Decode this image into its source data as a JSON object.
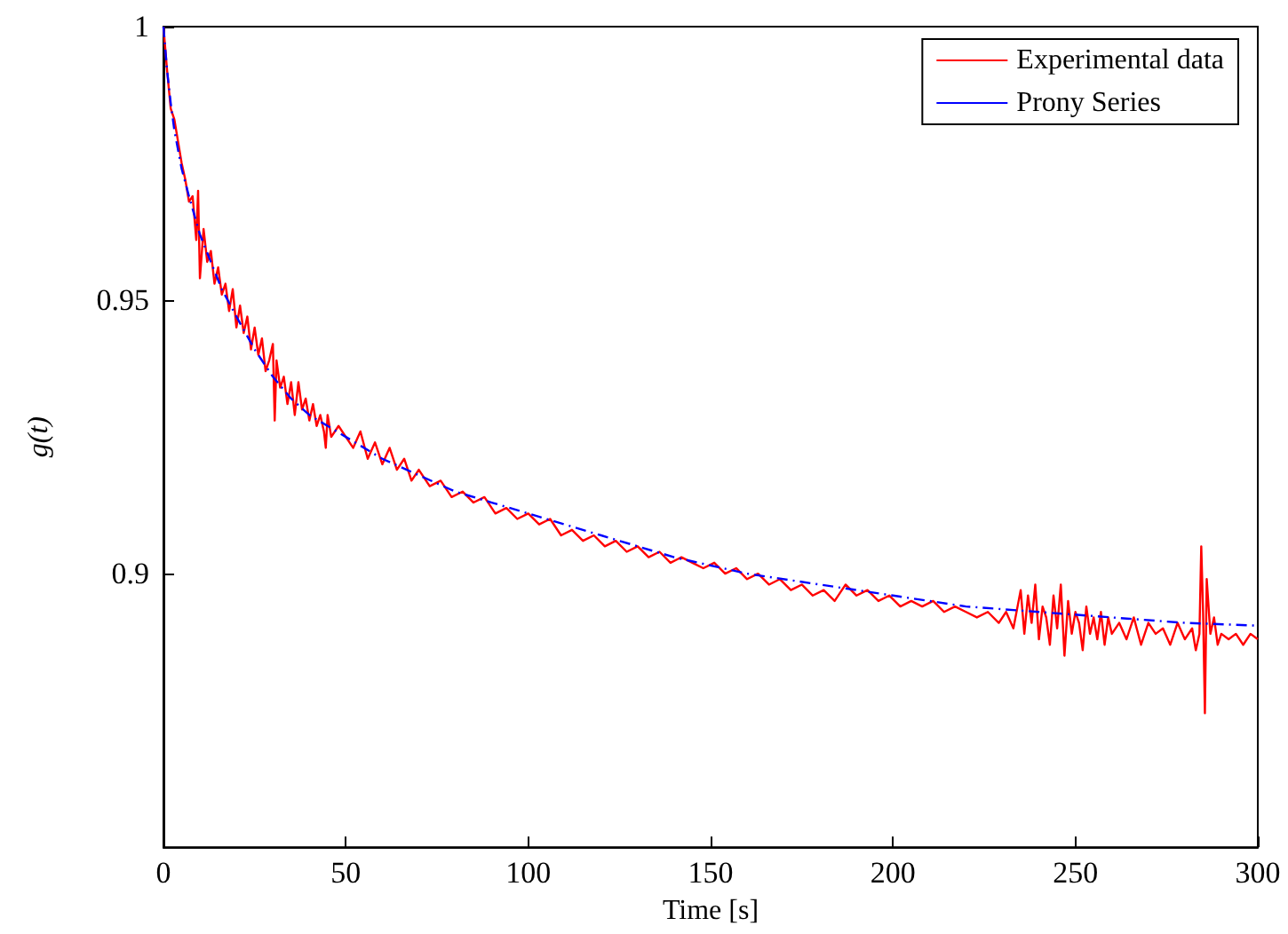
{
  "chart_data": {
    "type": "line",
    "xlabel": "Time [s]",
    "ylabel": "g(t)",
    "xlim": [
      0,
      300
    ],
    "xticks": [
      0,
      50,
      100,
      150,
      200,
      250,
      300
    ],
    "ylim": [
      0.85,
      1
    ],
    "yticks": [
      0.9,
      0.95,
      1
    ],
    "grid": false,
    "legend": "top right",
    "marker": "none",
    "series": [
      {
        "name": "Experimental data",
        "color": "#ff0000",
        "line_style": "solid",
        "x": [
          0,
          1,
          2,
          3,
          4,
          5,
          6,
          7,
          8,
          9,
          9.5,
          10,
          11,
          12,
          13,
          14,
          15,
          16,
          17,
          18,
          19,
          20,
          21,
          22,
          23,
          24,
          25,
          26,
          27,
          28,
          29,
          30,
          30.5,
          31,
          32,
          33,
          34,
          35,
          36,
          37,
          38,
          39,
          40,
          41,
          42,
          43,
          44,
          44.5,
          45,
          46,
          48,
          50,
          52,
          54,
          56,
          58,
          60,
          62,
          64,
          66,
          68,
          70,
          73,
          76,
          79,
          82,
          85,
          88,
          91,
          94,
          97,
          100,
          103,
          106,
          109,
          112,
          115,
          118,
          121,
          124,
          127,
          130,
          133,
          136,
          139,
          142,
          145,
          148,
          151,
          154,
          157,
          160,
          163,
          166,
          169,
          172,
          175,
          178,
          181,
          184,
          187,
          190,
          193,
          196,
          199,
          202,
          205,
          208,
          211,
          214,
          217,
          220,
          223,
          226,
          229,
          231,
          233,
          235,
          236,
          237,
          238,
          239,
          240,
          241,
          242,
          243,
          244,
          245,
          246,
          247,
          248,
          249,
          250,
          251,
          252,
          253,
          254,
          255,
          256,
          257,
          258,
          259,
          260,
          262,
          264,
          266,
          268,
          270,
          272,
          274,
          276,
          278,
          280,
          282,
          283,
          284,
          284.5,
          285,
          285.5,
          286,
          287,
          288,
          289,
          290,
          292,
          294,
          296,
          298,
          300
        ],
        "values": [
          1.0,
          0.992,
          0.985,
          0.983,
          0.979,
          0.975,
          0.972,
          0.968,
          0.969,
          0.961,
          0.97,
          0.954,
          0.963,
          0.957,
          0.959,
          0.953,
          0.956,
          0.951,
          0.953,
          0.948,
          0.952,
          0.945,
          0.949,
          0.944,
          0.947,
          0.941,
          0.945,
          0.94,
          0.943,
          0.937,
          0.939,
          0.942,
          0.928,
          0.939,
          0.934,
          0.936,
          0.931,
          0.935,
          0.929,
          0.935,
          0.93,
          0.932,
          0.928,
          0.931,
          0.927,
          0.929,
          0.926,
          0.923,
          0.929,
          0.925,
          0.927,
          0.925,
          0.923,
          0.926,
          0.921,
          0.924,
          0.92,
          0.923,
          0.919,
          0.921,
          0.917,
          0.919,
          0.916,
          0.917,
          0.914,
          0.915,
          0.913,
          0.914,
          0.911,
          0.912,
          0.91,
          0.911,
          0.909,
          0.91,
          0.907,
          0.908,
          0.906,
          0.907,
          0.905,
          0.906,
          0.904,
          0.905,
          0.903,
          0.904,
          0.902,
          0.903,
          0.902,
          0.901,
          0.902,
          0.9,
          0.901,
          0.899,
          0.9,
          0.898,
          0.899,
          0.897,
          0.898,
          0.896,
          0.897,
          0.895,
          0.898,
          0.896,
          0.897,
          0.895,
          0.896,
          0.894,
          0.895,
          0.894,
          0.895,
          0.893,
          0.894,
          0.893,
          0.892,
          0.893,
          0.891,
          0.893,
          0.89,
          0.897,
          0.889,
          0.896,
          0.891,
          0.898,
          0.888,
          0.894,
          0.892,
          0.887,
          0.896,
          0.89,
          0.898,
          0.885,
          0.895,
          0.889,
          0.893,
          0.891,
          0.886,
          0.894,
          0.889,
          0.892,
          0.888,
          0.893,
          0.887,
          0.892,
          0.889,
          0.891,
          0.888,
          0.892,
          0.887,
          0.891,
          0.889,
          0.89,
          0.887,
          0.891,
          0.888,
          0.89,
          0.886,
          0.889,
          0.905,
          0.893,
          0.8745,
          0.899,
          0.889,
          0.892,
          0.887,
          0.889,
          0.888,
          0.889,
          0.887,
          0.889,
          0.888
        ]
      },
      {
        "name": "Prony Series",
        "color": "#0000ff",
        "line_style": "dashdot",
        "x": [
          0,
          1,
          2,
          3,
          5,
          7,
          10,
          13,
          16,
          20,
          25,
          30,
          35,
          40,
          45,
          50,
          60,
          70,
          80,
          90,
          100,
          120,
          140,
          160,
          180,
          200,
          220,
          240,
          260,
          280,
          300
        ],
        "values": [
          1.0,
          0.992,
          0.986,
          0.981,
          0.974,
          0.969,
          0.962,
          0.957,
          0.952,
          0.947,
          0.941,
          0.936,
          0.932,
          0.929,
          0.927,
          0.925,
          0.921,
          0.918,
          0.915,
          0.913,
          0.911,
          0.907,
          0.903,
          0.9,
          0.898,
          0.896,
          0.894,
          0.893,
          0.892,
          0.891,
          0.8905
        ]
      }
    ]
  }
}
